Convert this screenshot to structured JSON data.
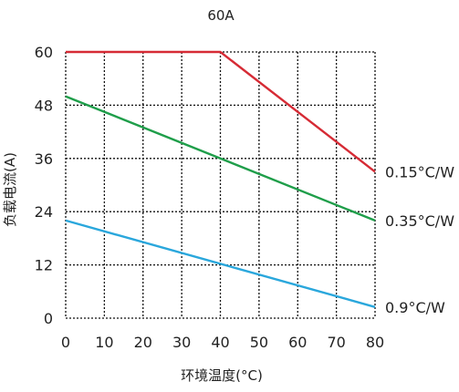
{
  "chart_data": {
    "type": "line",
    "title": "60A",
    "xlabel": "环境温度(°C)",
    "ylabel": "负载电流(A)",
    "xlim": [
      0,
      80
    ],
    "ylim": [
      0,
      60
    ],
    "x_ticks": [
      0,
      10,
      20,
      30,
      40,
      50,
      60,
      70,
      80
    ],
    "y_ticks": [
      0,
      12,
      24,
      36,
      48,
      60
    ],
    "grid": true,
    "series": [
      {
        "name": "0.15°C/W",
        "color": "#d62b35",
        "x": [
          0,
          40,
          80
        ],
        "y": [
          60,
          60,
          33
        ]
      },
      {
        "name": "0.35°C/W",
        "color": "#1f9e4a",
        "x": [
          0,
          80
        ],
        "y": [
          50,
          22
        ]
      },
      {
        "name": "0.9°C/W",
        "color": "#2aa7dc",
        "x": [
          0,
          80
        ],
        "y": [
          22,
          2.5
        ]
      }
    ]
  }
}
